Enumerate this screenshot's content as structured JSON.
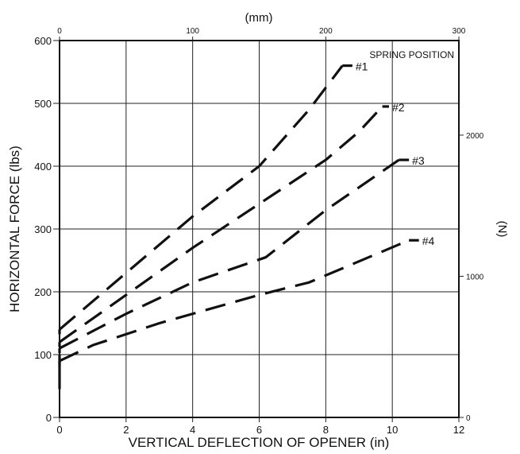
{
  "chart_data": {
    "type": "line",
    "title": "",
    "xlabel": "VERTICAL DEFLECTION OF OPENER (in)",
    "ylabel": "HORIZONTAL FORCE (lbs)",
    "x2label": "(mm)",
    "y2label": "(N)",
    "xlim": [
      0,
      12
    ],
    "ylim": [
      0,
      600
    ],
    "x2lim": [
      0,
      300
    ],
    "y2lim": [
      0,
      2670
    ],
    "xticks": [
      "0",
      "2",
      "4",
      "6",
      "8",
      "10",
      "12"
    ],
    "yticks": [
      "0",
      "100",
      "200",
      "300",
      "400",
      "500",
      "600"
    ],
    "x2ticks": [
      "0",
      "100",
      "200",
      "300"
    ],
    "y2ticks": [
      "0",
      "1000",
      "2000"
    ],
    "grid": true,
    "legend_title": "SPRING POSITION",
    "series": [
      {
        "name": "#1",
        "x": [
          0,
          2,
          4,
          6,
          7.5,
          8.5,
          8.8
        ],
        "y": [
          140,
          230,
          320,
          400,
          490,
          560,
          560
        ]
      },
      {
        "name": "#2",
        "x": [
          0,
          2,
          4,
          6,
          8,
          9,
          9.7,
          9.9
        ],
        "y": [
          120,
          195,
          270,
          340,
          410,
          455,
          495,
          495
        ]
      },
      {
        "name": "#3",
        "x": [
          0,
          2,
          4,
          6.2,
          8,
          10.2,
          10.5
        ],
        "y": [
          110,
          165,
          215,
          255,
          330,
          410,
          410
        ]
      },
      {
        "name": "#4",
        "x": [
          0,
          1,
          3,
          6,
          7.5,
          10.5,
          10.8
        ],
        "y": [
          90,
          115,
          150,
          195,
          215,
          282,
          282
        ]
      }
    ]
  }
}
